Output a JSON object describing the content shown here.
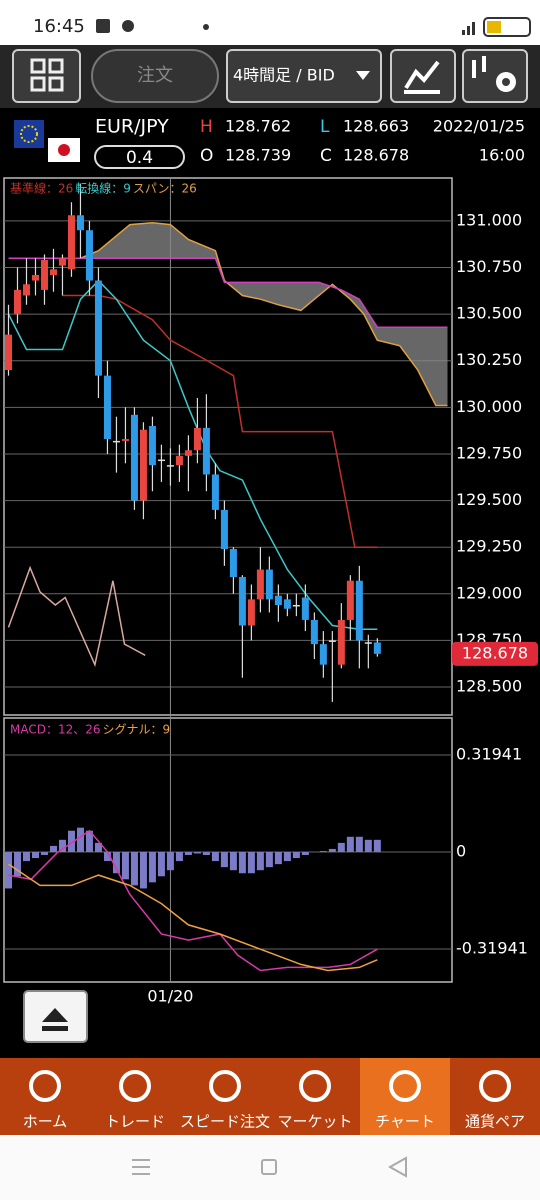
{
  "status_bar": {
    "time": "16:45"
  },
  "toolbar": {
    "order": "注文",
    "timeframe": "4時間足 / BID"
  },
  "header": {
    "pair": "EUR/JPY",
    "spread": "0.4",
    "high_label": "H",
    "high": 128.762,
    "low_label": "L",
    "low": 128.663,
    "open_label": "O",
    "open": 128.739,
    "close_label": "C",
    "close": 128.678,
    "date": "2022/01/25",
    "time": "16:00"
  },
  "chart_data": [
    {
      "type": "candlestick",
      "xlim": [
        -0.5,
        49.3
      ],
      "ylim": [
        128.35,
        131.23
      ],
      "yticks": [
        {
          "value": 131,
          "label": "131.000"
        },
        {
          "value": 130.75,
          "label": "130.750"
        },
        {
          "value": 130.5,
          "label": "130.500"
        },
        {
          "value": 130.25,
          "label": "130.250"
        },
        {
          "value": 130,
          "label": "130.000"
        },
        {
          "value": 129.75,
          "label": "129.750"
        },
        {
          "value": 129.5,
          "label": "129.500"
        },
        {
          "value": 129.25,
          "label": "129.250"
        },
        {
          "value": 129,
          "label": "129.000"
        },
        {
          "value": 128.75,
          "label": "128.750"
        },
        {
          "value": 128.5,
          "label": "128.500"
        }
      ],
      "grid": true,
      "up_color": "#e8473f",
      "down_color": "#2e9be8",
      "last_price": 128.678,
      "open": [
        130.2,
        130.5,
        130.6,
        130.68,
        130.63,
        130.71,
        130.76,
        130.74,
        131.03,
        130.95,
        130.68,
        130.17,
        129.82,
        129.82,
        129.96,
        129.5,
        129.9,
        129.72,
        129.69,
        129.69,
        129.74,
        129.77,
        129.89,
        129.64,
        129.45,
        129.24,
        129.09,
        128.83,
        128.97,
        129.13,
        128.99,
        128.97,
        128.94,
        128.98,
        128.86,
        128.73,
        128.75,
        128.62,
        128.86,
        129.07,
        128.74,
        128.739
      ],
      "high": [
        130.55,
        130.75,
        130.8,
        130.8,
        130.82,
        130.85,
        130.82,
        131.1,
        131.2,
        131.0,
        130.75,
        130.25,
        129.95,
        130.0,
        130.0,
        129.92,
        129.95,
        129.8,
        129.78,
        129.8,
        129.85,
        130.05,
        130.07,
        129.7,
        129.5,
        129.25,
        129.1,
        129.05,
        129.25,
        129.2,
        129.05,
        129.0,
        129.0,
        129.05,
        128.9,
        128.8,
        128.8,
        128.95,
        129.1,
        129.15,
        128.78,
        128.762
      ],
      "low": [
        130.17,
        130.45,
        130.55,
        130.6,
        130.55,
        130.62,
        130.6,
        130.7,
        130.8,
        130.6,
        130.05,
        129.75,
        129.65,
        129.7,
        129.45,
        129.4,
        129.55,
        129.6,
        129.58,
        129.6,
        129.55,
        129.7,
        129.55,
        129.4,
        129.15,
        129.0,
        128.55,
        128.75,
        128.9,
        128.9,
        128.85,
        128.88,
        128.88,
        128.8,
        128.65,
        128.55,
        128.42,
        128.6,
        128.75,
        128.6,
        128.6,
        128.663
      ],
      "close": [
        130.39,
        130.63,
        130.66,
        130.71,
        130.79,
        130.74,
        130.8,
        131.03,
        130.95,
        130.68,
        130.17,
        129.83,
        129.82,
        129.83,
        129.5,
        129.88,
        129.69,
        129.72,
        129.69,
        129.74,
        129.77,
        129.89,
        129.64,
        129.45,
        129.24,
        129.09,
        128.83,
        128.97,
        129.13,
        128.97,
        128.94,
        128.92,
        128.94,
        128.86,
        128.73,
        128.62,
        128.75,
        128.86,
        129.07,
        128.75,
        128.74,
        128.678
      ],
      "series": [
        {
          "name": "基準線：26",
          "color": "#c0302a",
          "x": [
            6,
            10,
            12,
            16,
            18,
            21,
            25,
            26,
            36,
            38.5,
            41
          ],
          "values": [
            130.6,
            130.6,
            130.58,
            130.47,
            130.36,
            130.28,
            130.17,
            129.87,
            129.87,
            129.25,
            129.25
          ]
        },
        {
          "name": "転換線：9",
          "color": "#3cc8c8",
          "x": [
            0,
            2,
            6,
            8,
            10,
            12,
            15,
            18,
            20,
            22,
            23.5,
            26,
            28,
            31,
            33.5,
            36,
            39,
            41
          ],
          "values": [
            130.5,
            130.31,
            130.31,
            130.58,
            130.68,
            130.58,
            130.36,
            130.25,
            130.0,
            129.77,
            129.66,
            129.61,
            129.4,
            129.13,
            128.97,
            128.83,
            128.81,
            128.81
          ]
        },
        {
          "name": "スパン：26",
          "color": "#e0a040",
          "x": [
            0,
            8,
            10,
            12,
            13.5,
            16,
            18,
            20,
            23,
            24,
            26,
            28,
            30,
            32.5,
            34,
            36,
            38,
            39.5,
            41,
            43.5,
            45.5,
            47.5,
            48.8
          ],
          "values": [
            130.8,
            130.8,
            130.84,
            130.92,
            130.98,
            130.99,
            130.98,
            130.9,
            130.84,
            130.68,
            130.6,
            130.58,
            130.55,
            130.52,
            130.58,
            130.66,
            130.58,
            130.5,
            130.36,
            130.33,
            130.2,
            130.01,
            130.01
          ]
        },
        {
          "color": "#d040c0",
          "x": [
            0,
            23,
            24,
            34.5,
            37,
            39,
            41,
            48.8
          ],
          "values": [
            130.8,
            130.8,
            130.67,
            130.67,
            130.63,
            130.58,
            130.43,
            130.43
          ]
        },
        {
          "color": "#d8a8a0",
          "x": [
            0,
            2.4,
            3.5,
            5.2,
            6.3,
            9.6,
            11.6,
            12.9,
            15.2
          ],
          "values": [
            128.82,
            129.14,
            129.01,
            128.94,
            128.98,
            128.62,
            129.07,
            128.73,
            128.67
          ]
        }
      ]
    },
    {
      "type": "macd",
      "xlim": [
        -0.5,
        49.3
      ],
      "ylim": [
        -0.428,
        0.441
      ],
      "yticks": [
        0.31941,
        0,
        -0.31941
      ],
      "grid": true,
      "xticks": [
        {
          "value": 18,
          "label": "01/20"
        }
      ],
      "histogram": {
        "color": "#7b7bc8",
        "values": [
          -0.12,
          -0.08,
          -0.03,
          -0.02,
          -0.01,
          0.02,
          0.04,
          0.07,
          0.08,
          0.07,
          0.03,
          -0.03,
          -0.07,
          -0.09,
          -0.11,
          -0.12,
          -0.1,
          -0.08,
          -0.06,
          -0.03,
          -0.01,
          -0.005,
          -0.01,
          -0.03,
          -0.05,
          -0.06,
          -0.07,
          -0.07,
          -0.06,
          -0.05,
          -0.04,
          -0.03,
          -0.02,
          -0.01,
          0.0,
          0.003,
          0.01,
          0.03,
          0.05,
          0.05,
          0.04,
          0.04
        ]
      },
      "series": [
        {
          "name": "MACD：12、26",
          "color": "#d63aa8",
          "x": [
            0,
            2.5,
            5.5,
            9,
            11,
            13.5,
            17,
            20,
            23.5,
            25.5,
            28,
            31,
            35.5,
            38,
            41
          ],
          "values": [
            -0.076,
            -0.09,
            0.0,
            0.07,
            0.0,
            -0.14,
            -0.27,
            -0.29,
            -0.27,
            -0.34,
            -0.39,
            -0.38,
            -0.38,
            -0.37,
            -0.32
          ]
        },
        {
          "name": "シグナル：9",
          "color": "#f0a040",
          "x": [
            0,
            3.5,
            7,
            10,
            13.5,
            17,
            20,
            23.5,
            28,
            32.5,
            35.5,
            39,
            41
          ],
          "values": [
            -0.04,
            -0.11,
            -0.11,
            -0.076,
            -0.11,
            -0.17,
            -0.24,
            -0.27,
            -0.32,
            -0.37,
            -0.39,
            -0.38,
            -0.355
          ]
        }
      ]
    }
  ],
  "nav": {
    "items": [
      "ホーム",
      "トレード",
      "スピード注文",
      "マーケット",
      "チャート",
      "通貨ペア"
    ],
    "active": 4
  }
}
